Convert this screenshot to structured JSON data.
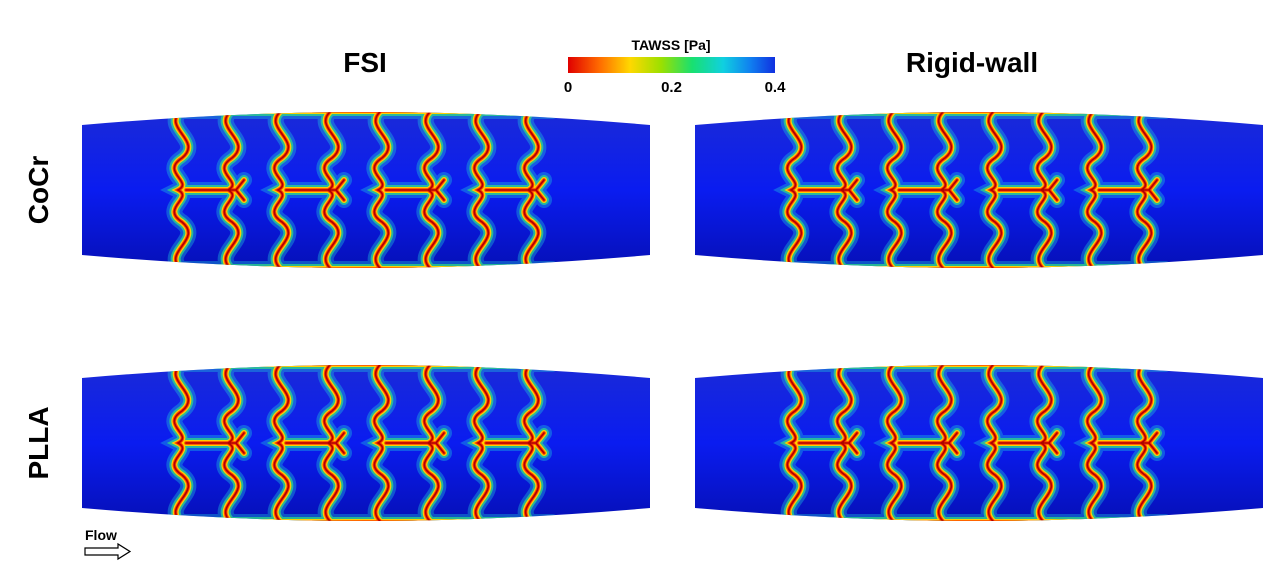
{
  "columns": [
    "FSI",
    "Rigid-wall"
  ],
  "rows": [
    "CoCr",
    "PLLA"
  ],
  "colorbar": {
    "title": "TAWSS [Pa]",
    "range": [
      0,
      0.4
    ],
    "ticks": [
      0,
      0.2,
      0.4
    ]
  },
  "flow_label": "Flow"
}
